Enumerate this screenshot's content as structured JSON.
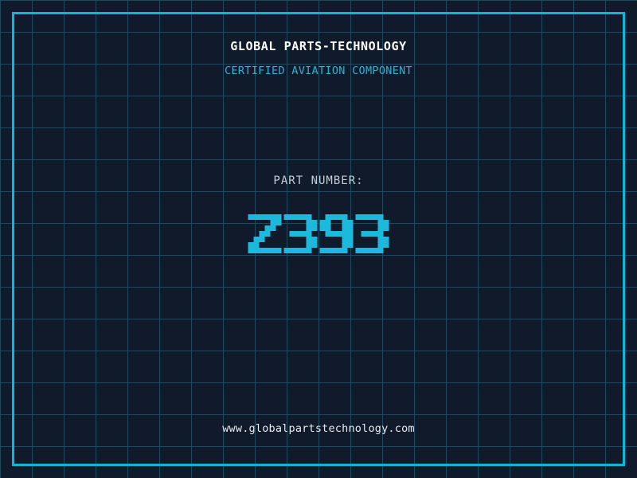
{
  "header": {
    "title": "GLOBAL PARTS-TECHNOLOGY",
    "subtitle": "CERTIFIED AVIATION COMPONENT"
  },
  "part": {
    "label": "PART NUMBER:",
    "value": "Z393"
  },
  "footer": {
    "url": "www.globalpartstechnology.com"
  },
  "colors": {
    "background": "#111a2b",
    "grid_line": "#1c4a5e",
    "frame_border": "#0cb6d8",
    "part_number": "#1db9dc",
    "title_text": "#ffffff",
    "subtitle_text": "#2fb0d4",
    "label_text": "#c5ced8",
    "footer_text": "#e4ebf1"
  }
}
